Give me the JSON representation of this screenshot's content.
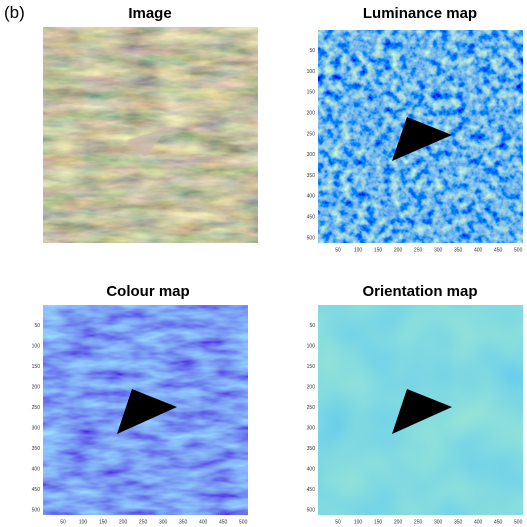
{
  "label": "(b)",
  "panels": [
    {
      "title": "Image"
    },
    {
      "title": "Luminance map",
      "xticks": [
        50,
        100,
        150,
        200,
        250,
        300,
        350,
        400,
        450,
        500
      ],
      "yticks": [
        50,
        100,
        150,
        200,
        250,
        300,
        350,
        400,
        450,
        500
      ]
    },
    {
      "title": "Colour map",
      "xticks": [
        50,
        100,
        150,
        200,
        250,
        300,
        350,
        400,
        450,
        500
      ],
      "yticks": [
        50,
        100,
        150,
        200,
        250,
        300,
        350,
        400,
        450,
        500
      ]
    },
    {
      "title": "Orientation map",
      "xticks": [
        50,
        100,
        150,
        200,
        250,
        300,
        350,
        400,
        450,
        500
      ],
      "yticks": [
        50,
        100,
        150,
        200,
        250,
        300,
        350,
        400,
        450,
        500
      ]
    }
  ]
}
